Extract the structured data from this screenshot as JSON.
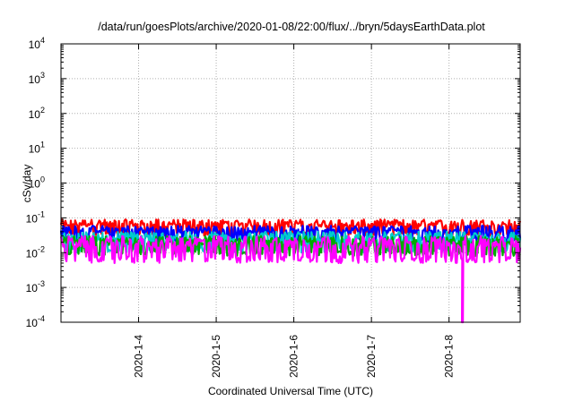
{
  "chart_data": {
    "type": "line",
    "title": "/data/run/goesPlots/archive/2020-01-08/22:00/flux/../bryn/5daysEarthData.plot",
    "xlabel": "Coordinated Universal Time (UTC)",
    "ylabel": "cSv/day",
    "yscale": "log",
    "ylim": [
      "1e-4",
      "1e4"
    ],
    "y_ticks": [
      {
        "value": "1e4",
        "mant": "10",
        "exp": "4"
      },
      {
        "value": "1e3",
        "mant": "10",
        "exp": "3"
      },
      {
        "value": "1e2",
        "mant": "10",
        "exp": "2"
      },
      {
        "value": "1e1",
        "mant": "10",
        "exp": "1"
      },
      {
        "value": "1e0",
        "mant": "10",
        "exp": "0"
      },
      {
        "value": "1e-1",
        "mant": "10",
        "exp": "-1"
      },
      {
        "value": "1e-2",
        "mant": "10",
        "exp": "-2"
      },
      {
        "value": "1e-3",
        "mant": "10",
        "exp": "-3"
      },
      {
        "value": "1e-4",
        "mant": "10",
        "exp": "-4"
      }
    ],
    "xlim": [
      "2020-01-03 00:00",
      "2020-01-08 22:00"
    ],
    "x_ticks": [
      "2020-1-4",
      "2020-1-5",
      "2020-1-6",
      "2020-1-7",
      "2020-1-8"
    ],
    "grid": true,
    "series": [
      {
        "color": "#ff0000",
        "typical_range": [
          0.03,
          0.09
        ]
      },
      {
        "color": "#0000ff",
        "typical_range": [
          0.02,
          0.06
        ]
      },
      {
        "color": "#00cccc",
        "typical_range": [
          0.01,
          0.04
        ]
      },
      {
        "color": "#00aa00",
        "typical_range": [
          0.008,
          0.03
        ]
      },
      {
        "color": "#ff00ff",
        "typical_range": [
          0.005,
          0.03
        ]
      }
    ],
    "notable": {
      "magenta_dropout_date": "2020-01-08 04:00",
      "magenta_dropout_min": "1e-4"
    }
  }
}
